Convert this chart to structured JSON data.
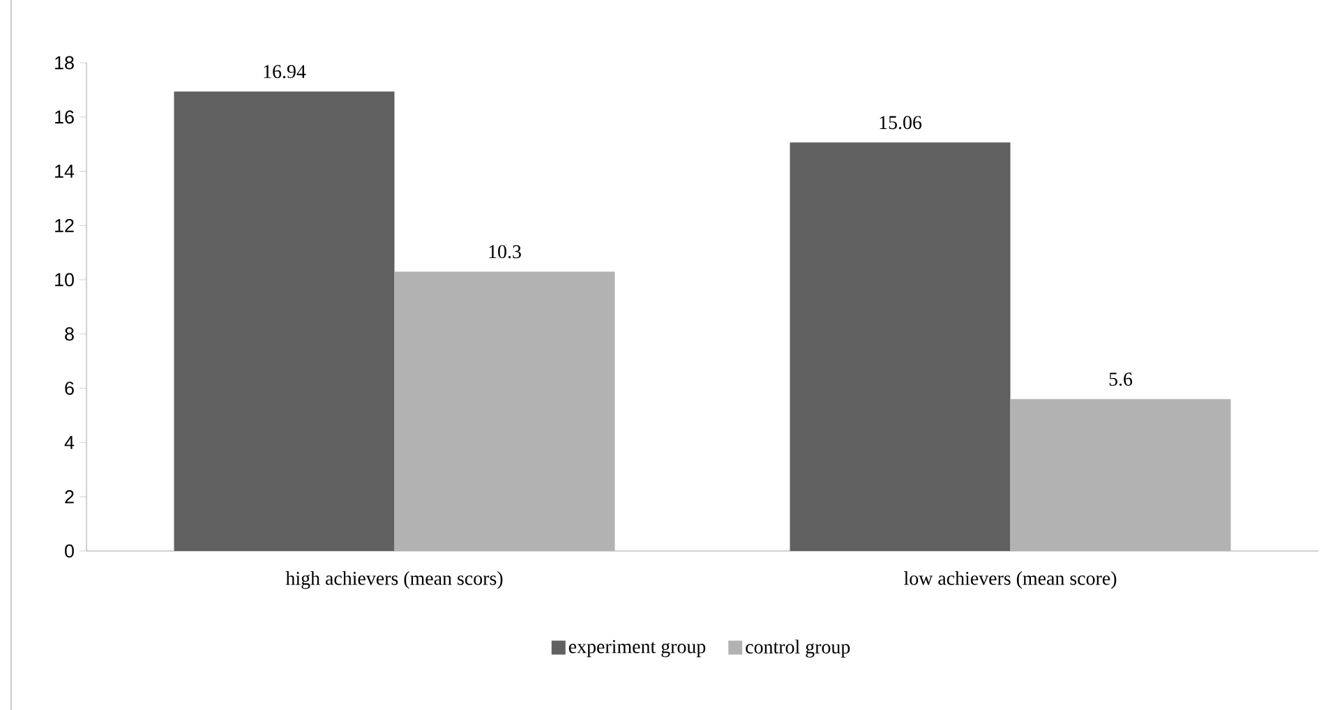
{
  "chart_data": {
    "type": "bar",
    "categories": [
      "high achievers (mean scors)",
      "low achievers (mean score)"
    ],
    "series": [
      {
        "name": "experiment group",
        "color": "#606060",
        "values": [
          16.94,
          15.06
        ],
        "value_labels": [
          "16.94",
          "15.06"
        ]
      },
      {
        "name": "control group",
        "color": "#b2b2b2",
        "values": [
          10.3,
          5.6
        ],
        "value_labels": [
          "10.3",
          "5.6"
        ]
      }
    ],
    "ylim": [
      0,
      18
    ],
    "yticks": [
      0,
      2,
      4,
      6,
      8,
      10,
      12,
      14,
      16,
      18
    ],
    "legend": "bottom"
  }
}
